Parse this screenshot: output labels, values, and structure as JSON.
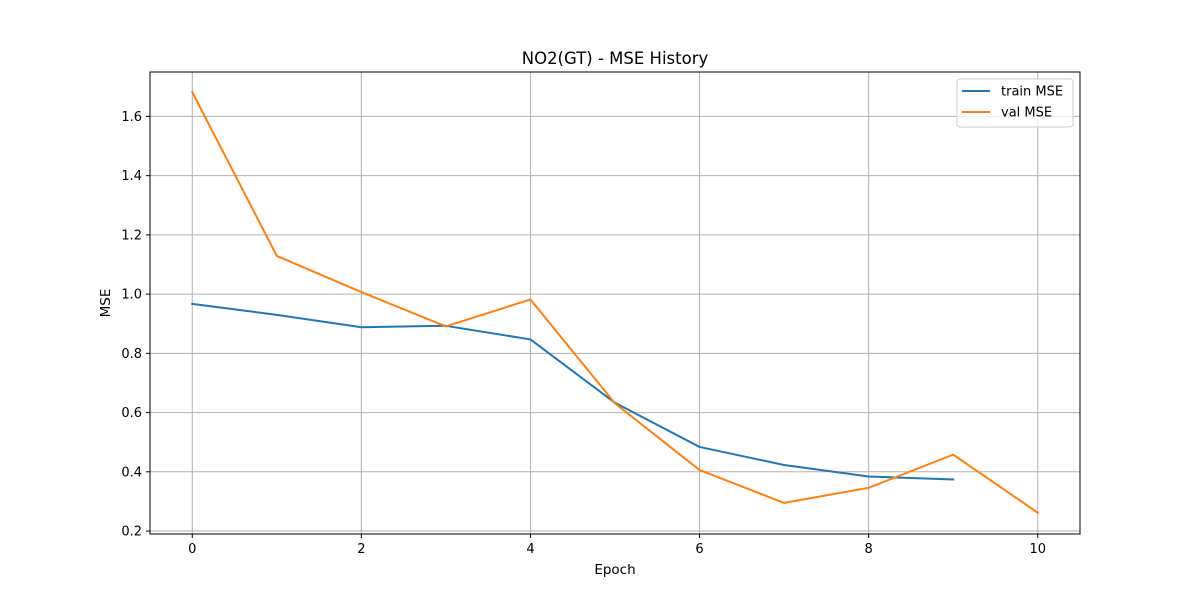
{
  "chart_data": {
    "type": "line",
    "title": "NO2(GT) - MSE History",
    "xlabel": "Epoch",
    "ylabel": "MSE",
    "xlim": [
      -0.5,
      10.5
    ],
    "ylim": [
      0.19,
      1.75
    ],
    "xticks": [
      0,
      2,
      4,
      6,
      8,
      10
    ],
    "xtick_labels": [
      "0",
      "2",
      "4",
      "6",
      "8",
      "10"
    ],
    "yticks": [
      0.2,
      0.4,
      0.6,
      0.8,
      1.0,
      1.2,
      1.4,
      1.6
    ],
    "ytick_labels": [
      "0.2",
      "0.4",
      "0.6",
      "0.8",
      "1.0",
      "1.2",
      "1.4",
      "1.6"
    ],
    "grid": true,
    "legend_position": "top-right",
    "series": [
      {
        "name": "train MSE",
        "color": "#1f77b4",
        "x": [
          0,
          1,
          2,
          3,
          4,
          5,
          6,
          7,
          8,
          9
        ],
        "values": [
          0.967,
          0.93,
          0.888,
          0.893,
          0.847,
          0.633,
          0.484,
          0.423,
          0.384,
          0.374
        ]
      },
      {
        "name": "val MSE",
        "color": "#ff7f0e",
        "x": [
          0,
          1,
          2,
          3,
          4,
          5,
          6,
          7,
          8,
          9,
          10
        ],
        "values": [
          1.682,
          1.129,
          1.007,
          0.891,
          0.982,
          0.631,
          0.406,
          0.295,
          0.346,
          0.458,
          0.262
        ]
      }
    ]
  }
}
